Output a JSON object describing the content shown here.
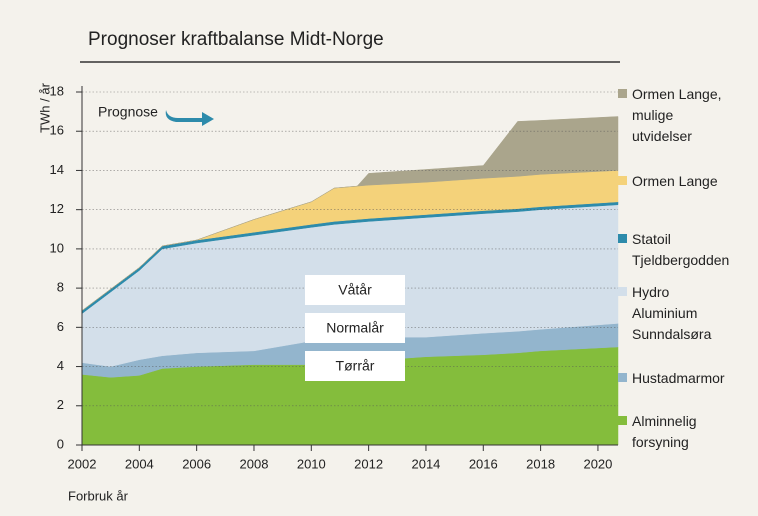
{
  "chart_data": {
    "type": "stacked_area",
    "title": "Prognoser kraftbalanse Midt-Norge",
    "ylabel": "TWh / år",
    "xlabel": "Forbruk år",
    "annotations": {
      "prognose": "Prognose",
      "wet": "Våtår",
      "normal": "Normalår",
      "dry": "Tørrår"
    },
    "x": [
      2002,
      2003,
      2004,
      2004.8,
      2006,
      2008,
      2010,
      2010.8,
      2011.6,
      2012,
      2014,
      2016,
      2017.2,
      2018,
      2020.7
    ],
    "series": [
      {
        "name": "Alminnelig forsyning",
        "color": "#84bd3c",
        "values": [
          3.6,
          3.45,
          3.55,
          3.9,
          4.0,
          4.1,
          4.1,
          4.2,
          4.25,
          4.3,
          4.5,
          4.6,
          4.7,
          4.8,
          5.0
        ]
      },
      {
        "name": "Hustadmarmor",
        "color": "#93b5cd",
        "values": [
          0.6,
          0.55,
          0.8,
          0.65,
          0.7,
          0.7,
          1.2,
          1.15,
          1.15,
          1.2,
          1.0,
          1.1,
          1.1,
          1.1,
          1.2
        ]
      },
      {
        "name": "Hydro Aluminium Sunndalsøra",
        "color": "#d3dfea",
        "values": [
          2.5,
          3.8,
          4.55,
          5.45,
          5.6,
          5.9,
          5.8,
          5.9,
          5.95,
          5.9,
          6.1,
          6.1,
          6.1,
          6.1,
          6.05
        ]
      },
      {
        "name": "Statoil Tjeldbergodden",
        "color": "#2d8bab",
        "values": [
          0.15,
          0.15,
          0.15,
          0.15,
          0.15,
          0.15,
          0.15,
          0.15,
          0.15,
          0.15,
          0.15,
          0.15,
          0.15,
          0.15,
          0.15
        ]
      },
      {
        "name": "Ormen Lange",
        "color": "#f4d27a",
        "values": [
          0,
          0,
          0,
          0,
          0,
          0.65,
          1.15,
          1.7,
          1.7,
          1.7,
          1.65,
          1.65,
          1.65,
          1.65,
          1.6
        ]
      },
      {
        "name": "Ormen Lange, mulige utvidelser",
        "color": "#aaa58c",
        "values": [
          0,
          0,
          0,
          0,
          0,
          0,
          0,
          0,
          0,
          0.6,
          0.65,
          0.65,
          2.8,
          2.75,
          2.75
        ]
      }
    ],
    "xlim": [
      2002,
      2020.7
    ],
    "xticks": [
      2002,
      2004,
      2006,
      2008,
      2010,
      2012,
      2014,
      2016,
      2018,
      2020
    ],
    "ylim": [
      0,
      18
    ],
    "yticks": [
      0,
      2,
      4,
      6,
      8,
      10,
      12,
      14,
      16,
      18
    ],
    "grid": true
  }
}
